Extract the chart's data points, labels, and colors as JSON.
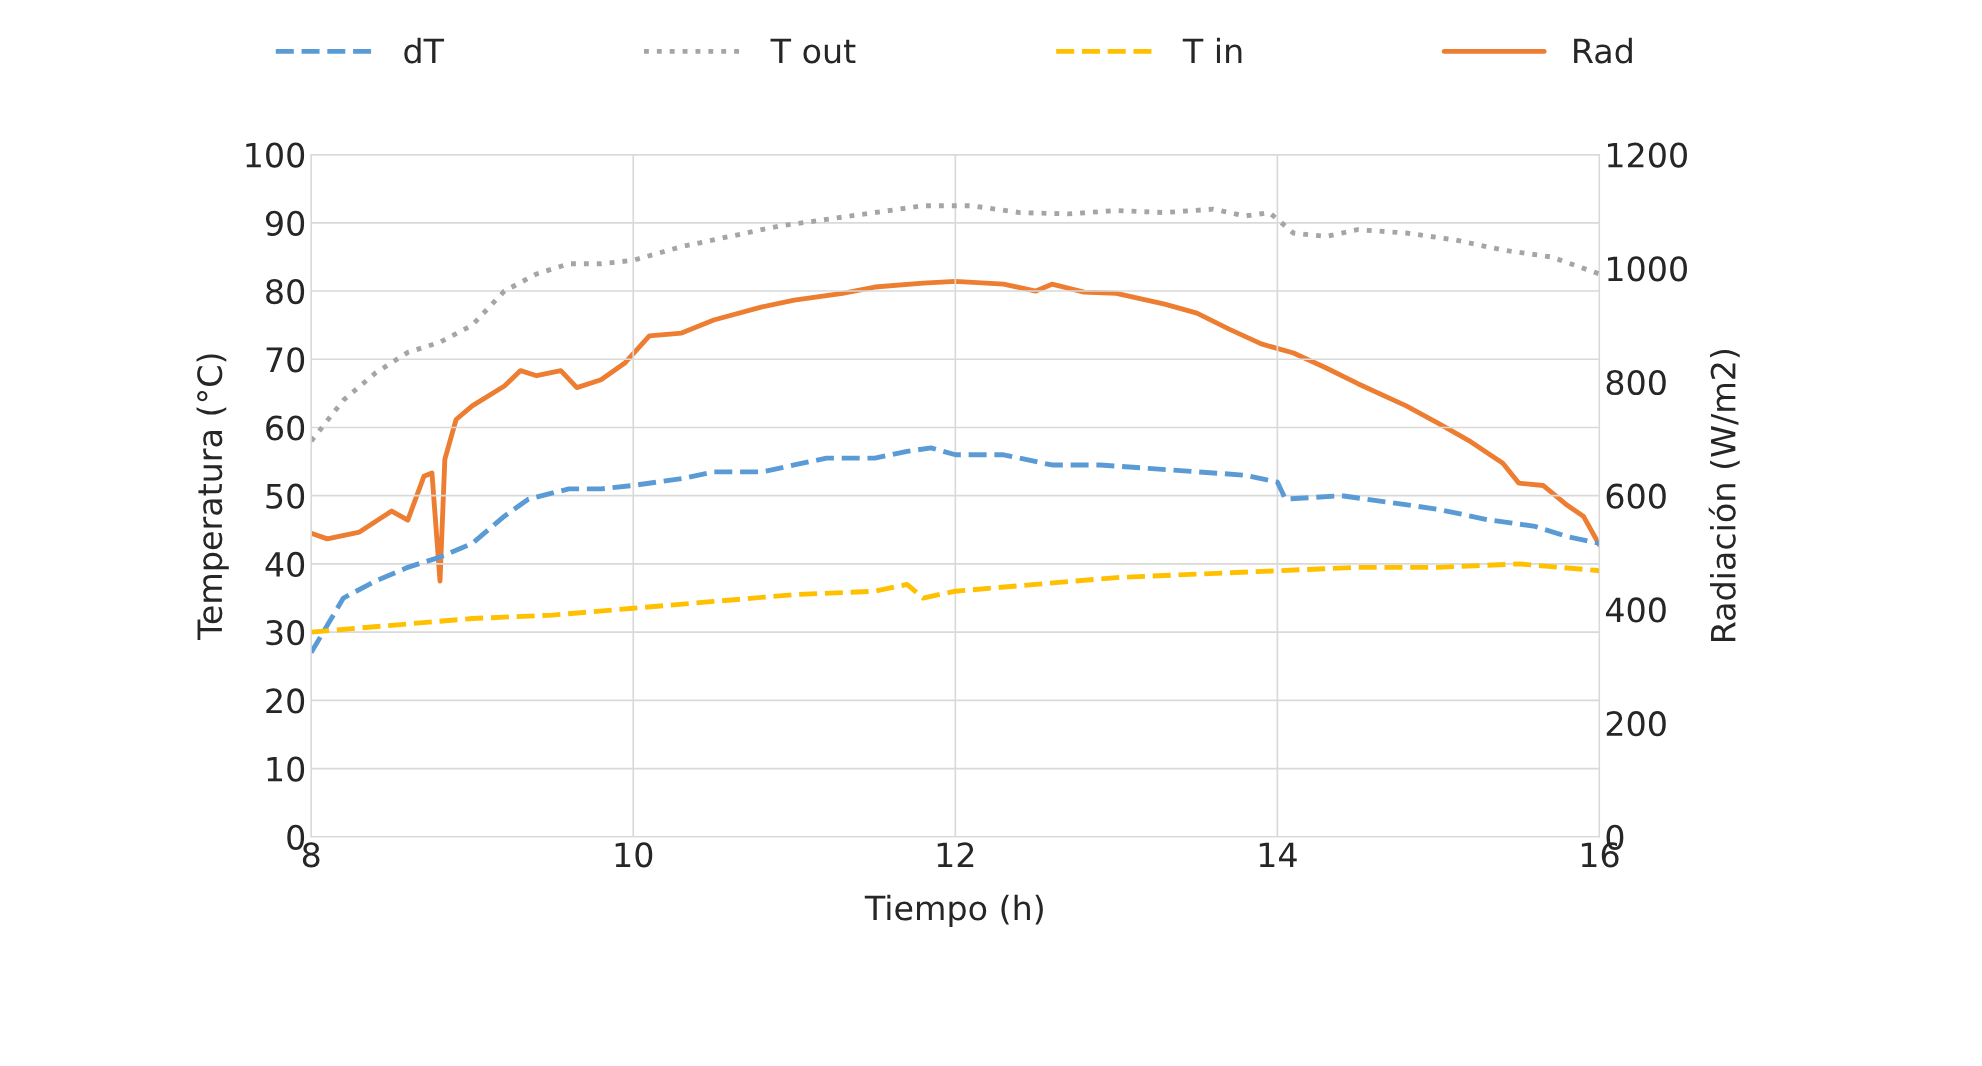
{
  "chart_data": {
    "type": "line",
    "xlabel": "Tiempo (h)",
    "ylabel": "Temperatura (°C)",
    "y2label": "Radiación (W/m2)",
    "xlim": [
      8,
      16
    ],
    "xticks": [
      8,
      10,
      12,
      14,
      16
    ],
    "ylim": [
      0,
      100
    ],
    "yticks": [
      0,
      10,
      20,
      30,
      40,
      50,
      60,
      70,
      80,
      90,
      100
    ],
    "y2lim": [
      0,
      1200
    ],
    "y2ticks": [
      0,
      200,
      400,
      600,
      800,
      1000,
      1200
    ],
    "grid": true,
    "legend": "top",
    "marker": "none",
    "series": [
      {
        "name": "dT",
        "color": "#5b9bd5",
        "line_style": "dashed",
        "x": [
          8.0,
          8.1,
          8.2,
          8.4,
          8.6,
          8.8,
          9.0,
          9.2,
          9.35,
          9.6,
          9.8,
          10.0,
          10.3,
          10.5,
          10.8,
          11.0,
          11.2,
          11.5,
          11.7,
          11.85,
          12.0,
          12.3,
          12.6,
          12.9,
          13.2,
          13.5,
          13.8,
          14.0,
          14.05,
          14.4,
          14.7,
          15.0,
          15.3,
          15.6,
          15.8,
          16.0
        ],
        "values": [
          27,
          31,
          35,
          37.5,
          39.5,
          41,
          43,
          47,
          49.5,
          51,
          51,
          51.5,
          52.5,
          53.5,
          53.5,
          54.5,
          55.5,
          55.5,
          56.5,
          57,
          56,
          56,
          54.5,
          54.5,
          54,
          53.5,
          53,
          52,
          49.5,
          50,
          49,
          48,
          46.5,
          45.5,
          44,
          43
        ]
      },
      {
        "name": "T out",
        "color": "#a5a5a5",
        "line_style": "dotted",
        "x": [
          8.0,
          8.2,
          8.4,
          8.6,
          8.8,
          9.0,
          9.2,
          9.4,
          9.6,
          9.8,
          10.0,
          10.3,
          10.6,
          10.9,
          11.2,
          11.5,
          11.8,
          12.1,
          12.4,
          12.7,
          13.0,
          13.3,
          13.6,
          13.8,
          13.95,
          14.1,
          14.3,
          14.5,
          14.8,
          15.1,
          15.4,
          15.7,
          16.0
        ],
        "values": [
          58,
          64,
          68,
          71,
          72.5,
          75,
          80,
          82.5,
          84,
          84,
          84.5,
          86.5,
          88,
          89.5,
          90.5,
          91.5,
          92.5,
          92.5,
          91.5,
          91.3,
          91.8,
          91.5,
          92,
          91,
          91.5,
          88.5,
          88,
          89,
          88.5,
          87.5,
          86,
          85,
          82.5
        ]
      },
      {
        "name": "T in",
        "color": "#ffc000",
        "line_style": "dashed",
        "x": [
          8.0,
          8.5,
          9.0,
          9.5,
          10.0,
          10.5,
          11.0,
          11.5,
          11.7,
          11.8,
          12.0,
          12.5,
          13.0,
          13.5,
          14.0,
          14.5,
          15.0,
          15.5,
          16.0
        ],
        "values": [
          30,
          31,
          32,
          32.5,
          33.5,
          34.5,
          35.5,
          36,
          37,
          35,
          36,
          37,
          38,
          38.5,
          39,
          39.5,
          39.5,
          40,
          39
        ]
      },
      {
        "name": "Rad",
        "color": "#ed7d31",
        "line_style": "solid",
        "axis": "y2",
        "x": [
          8.0,
          8.1,
          8.3,
          8.5,
          8.6,
          8.7,
          8.75,
          8.8,
          8.83,
          8.9,
          9.0,
          9.2,
          9.3,
          9.4,
          9.55,
          9.65,
          9.8,
          9.95,
          10.1,
          10.3,
          10.5,
          10.8,
          11.0,
          11.3,
          11.5,
          11.8,
          12.0,
          12.3,
          12.5,
          12.6,
          12.8,
          13.0,
          13.3,
          13.5,
          13.7,
          13.9,
          14.1,
          14.3,
          14.5,
          14.8,
          15.0,
          15.2,
          15.4,
          15.5,
          15.65,
          15.8,
          15.9,
          16.0
        ],
        "values": [
          534,
          524,
          536,
          573,
          557,
          634,
          640,
          450,
          664,
          734,
          758,
          793,
          820,
          811,
          820,
          790,
          804,
          834,
          881,
          886,
          909,
          932,
          944,
          956,
          967,
          974,
          977,
          972,
          960,
          972,
          958,
          956,
          937,
          921,
          893,
          867,
          851,
          825,
          797,
          758,
          727,
          695,
          657,
          622,
          618,
          583,
          564,
          513
        ]
      }
    ]
  }
}
